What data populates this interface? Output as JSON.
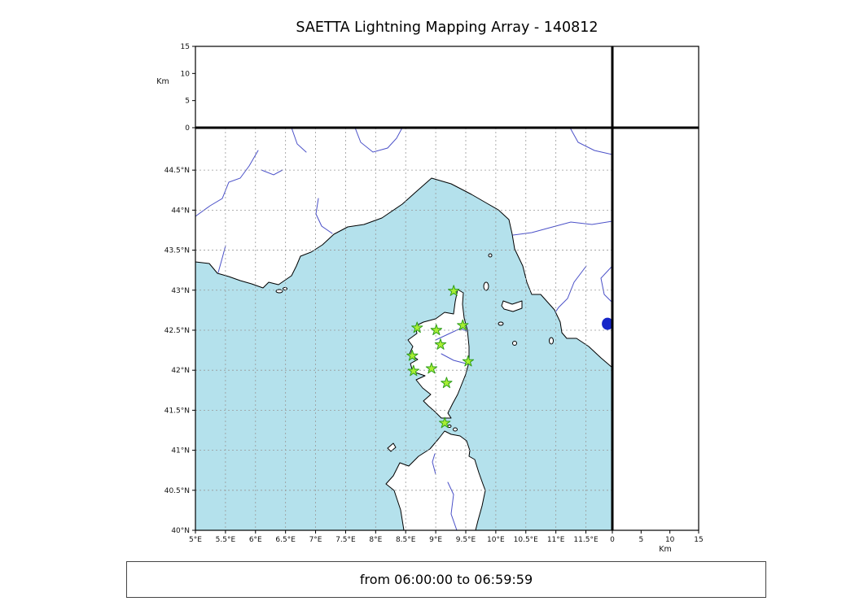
{
  "title": "SAETTA Lightning Mapping Array - 140812",
  "footer": {
    "text": "from 06:00:00 to 06:59:59"
  },
  "chart_data": {
    "type": "scatter",
    "title": "SAETTA Lightning Mapping Array - 140812",
    "time_range": "from 06:00:00 to 06:59:59",
    "map_panel": {
      "lon_range": [
        5.0,
        11.94
      ],
      "lat_range": [
        40.0,
        45.03
      ],
      "grid": "dashed",
      "sea_color": "#b4e1ec",
      "land_color": "#ffffff",
      "lon_ticks": [
        {
          "v": 5.0,
          "label": "5°E"
        },
        {
          "v": 5.5,
          "label": "5.5°E"
        },
        {
          "v": 6.0,
          "label": "6°E"
        },
        {
          "v": 6.5,
          "label": "6.5°E"
        },
        {
          "v": 7.0,
          "label": "7°E"
        },
        {
          "v": 7.5,
          "label": "7.5°E"
        },
        {
          "v": 8.0,
          "label": "8°E"
        },
        {
          "v": 8.5,
          "label": "8.5°E"
        },
        {
          "v": 9.0,
          "label": "9°E"
        },
        {
          "v": 9.5,
          "label": "9.5°E"
        },
        {
          "v": 10.0,
          "label": "10°E"
        },
        {
          "v": 10.5,
          "label": "10.5°E"
        },
        {
          "v": 11.0,
          "label": "11°E"
        },
        {
          "v": 11.5,
          "label": "11.5°E"
        }
      ],
      "lat_ticks": [
        {
          "v": 40.0,
          "label": "40°N"
        },
        {
          "v": 40.5,
          "label": "40.5°N"
        },
        {
          "v": 41.0,
          "label": "41°N"
        },
        {
          "v": 41.5,
          "label": "41.5°N"
        },
        {
          "v": 42.0,
          "label": "42°N"
        },
        {
          "v": 42.5,
          "label": "42.5°N"
        },
        {
          "v": 43.0,
          "label": "43°N"
        },
        {
          "v": 43.5,
          "label": "43.5°N"
        },
        {
          "v": 44.0,
          "label": "44°N"
        },
        {
          "v": 44.5,
          "label": "44.5°N"
        }
      ],
      "stations": [
        {
          "lon": 9.3,
          "lat": 42.99
        },
        {
          "lon": 8.69,
          "lat": 42.53
        },
        {
          "lon": 9.01,
          "lat": 42.5
        },
        {
          "lon": 9.45,
          "lat": 42.56
        },
        {
          "lon": 9.08,
          "lat": 42.32
        },
        {
          "lon": 8.61,
          "lat": 42.18
        },
        {
          "lon": 9.54,
          "lat": 42.11
        },
        {
          "lon": 8.93,
          "lat": 42.02
        },
        {
          "lon": 8.63,
          "lat": 41.99
        },
        {
          "lon": 9.18,
          "lat": 41.84
        },
        {
          "lon": 9.15,
          "lat": 41.34
        }
      ],
      "station_marker": {
        "shape": "star",
        "fill": "#a8ee33",
        "edge": "#2f9e1a"
      },
      "lake_dot": {
        "lon": 11.86,
        "lat": 42.58,
        "color": "#1626c8"
      }
    },
    "alt_lon_panel": {
      "ylabel": "Km",
      "range": [
        0,
        15
      ],
      "ticks": [
        {
          "v": 0,
          "label": "0"
        },
        {
          "v": 5,
          "label": "5"
        },
        {
          "v": 10,
          "label": "10"
        },
        {
          "v": 15,
          "label": "15"
        }
      ],
      "points": []
    },
    "alt_lat_panel": {
      "xlabel": "Km",
      "range": [
        0,
        15
      ],
      "ticks": [
        {
          "v": 0,
          "label": "0"
        },
        {
          "v": 5,
          "label": "5"
        },
        {
          "v": 10,
          "label": "10"
        },
        {
          "v": 15,
          "label": "15"
        }
      ],
      "points": []
    },
    "histogram_panel": {
      "points": []
    }
  }
}
